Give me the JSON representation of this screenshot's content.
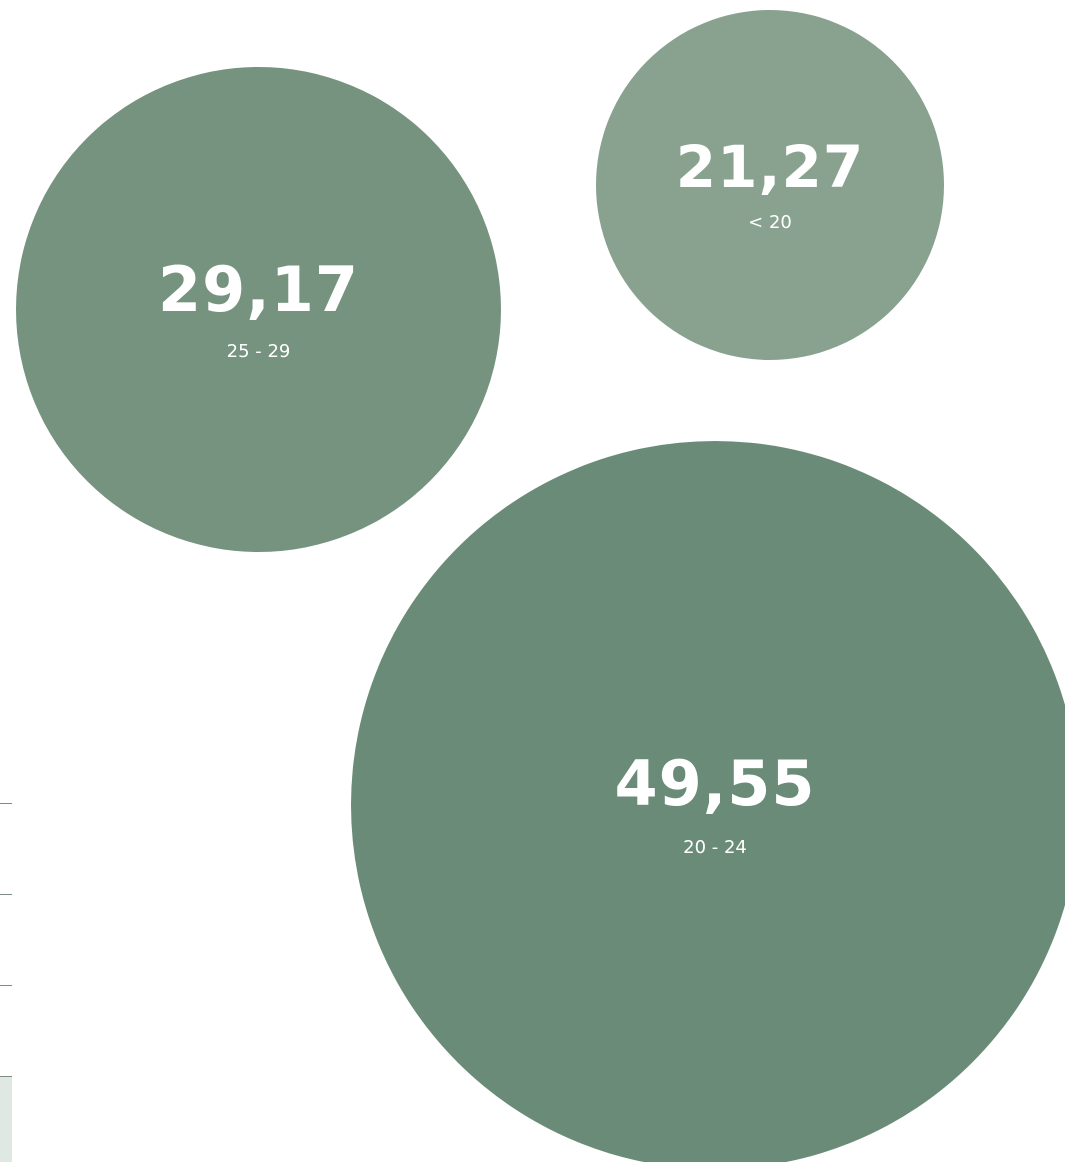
{
  "chart_data": {
    "type": "bubble",
    "title": "",
    "unit": "",
    "bubbles": [
      {
        "category": "20 - 24",
        "value": 49.55,
        "label": "49,55",
        "color": "#6a8b77"
      },
      {
        "category": "25 - 29",
        "value": 29.17,
        "label": "29,17",
        "color": "#76937f"
      },
      {
        "category": "< 20",
        "value": 21.27,
        "label": "21,27",
        "color": "#88a28f"
      }
    ]
  }
}
